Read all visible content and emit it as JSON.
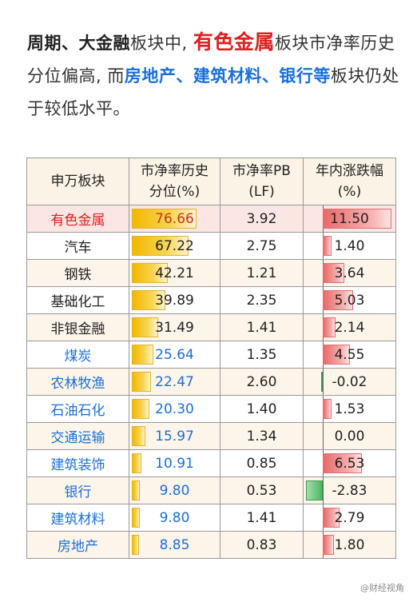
{
  "headline": {
    "part1": "周期、大金融",
    "part2": "板块中,",
    "part3": "有色金属",
    "part4": "板块市净率历史分位偏高, 而",
    "part5": "房地产、建筑材料、银行等",
    "part6": "板块仍处于较低水平。"
  },
  "table": {
    "headers": [
      "申万板块",
      "市净率历史\n分位(%)",
      "市净率PB\n(LF)",
      "年内涨跌幅\n(%)"
    ],
    "header_sector": "申万板块",
    "header_pct_line1": "市净率历史",
    "header_pct_line2": "分位(%)",
    "header_pb_line1": "市净率PB",
    "header_pb_line2": "(LF)",
    "header_chg_line1": "年内涨跌幅",
    "header_chg_line2": "(%)",
    "rows": [
      {
        "sector": "有色金属",
        "pct": "76.66",
        "pb": "3.92",
        "chg": "11.50",
        "color": "red"
      },
      {
        "sector": "汽车",
        "pct": "67.22",
        "pb": "2.75",
        "chg": "1.40",
        "color": "black"
      },
      {
        "sector": "钢铁",
        "pct": "42.21",
        "pb": "1.21",
        "chg": "3.64",
        "color": "black"
      },
      {
        "sector": "基础化工",
        "pct": "39.89",
        "pb": "2.35",
        "chg": "5.03",
        "color": "black"
      },
      {
        "sector": "非银金融",
        "pct": "31.49",
        "pb": "1.41",
        "chg": "2.14",
        "color": "black"
      },
      {
        "sector": "煤炭",
        "pct": "25.64",
        "pb": "1.35",
        "chg": "4.55",
        "color": "blue"
      },
      {
        "sector": "农林牧渔",
        "pct": "22.47",
        "pb": "2.60",
        "chg": "-0.02",
        "color": "blue"
      },
      {
        "sector": "石油石化",
        "pct": "20.30",
        "pb": "1.40",
        "chg": "1.53",
        "color": "blue"
      },
      {
        "sector": "交通运输",
        "pct": "15.97",
        "pb": "1.34",
        "chg": "0.00",
        "color": "blue"
      },
      {
        "sector": "建筑装饰",
        "pct": "10.91",
        "pb": "0.85",
        "chg": "6.53",
        "color": "blue"
      },
      {
        "sector": "银行",
        "pct": "9.80",
        "pb": "0.53",
        "chg": "-2.83",
        "color": "blue"
      },
      {
        "sector": "建筑材料",
        "pct": "9.80",
        "pb": "1.41",
        "chg": "2.79",
        "color": "blue"
      },
      {
        "sector": "房地产",
        "pct": "8.85",
        "pb": "0.83",
        "chg": "1.80",
        "color": "blue"
      }
    ]
  },
  "colors": {
    "accent_red": "#e02020",
    "accent_blue": "#1a6fd8",
    "bar_gold": "#f2b800",
    "bar_red": "#e86a6a",
    "bar_green": "#4fb565"
  },
  "footer": {
    "watermark": "@财经视角"
  }
}
